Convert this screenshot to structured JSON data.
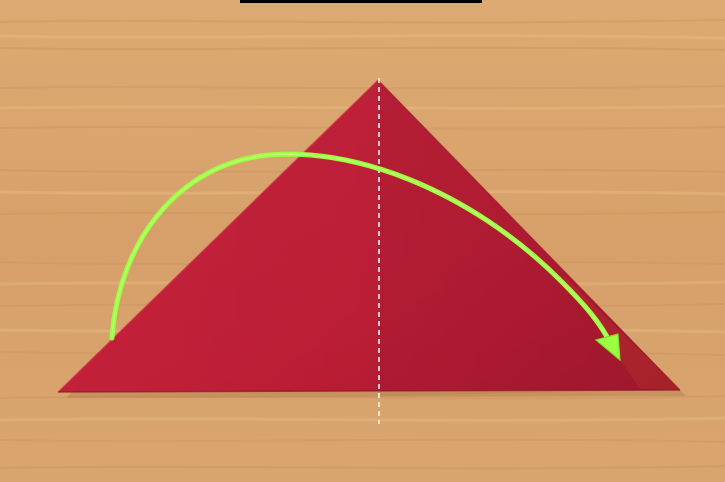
{
  "scene": {
    "subject": "origami-fold-step",
    "colors": {
      "table_base": "#d9a46e",
      "table_light": "#e6b884",
      "table_dark": "#c48d58",
      "paper_main": "#c4213a",
      "paper_shade": "#a8172f",
      "paper_edge": "#8f1226",
      "guide_line": "#f2f2f2",
      "fold_arrow": "#9cff3f",
      "top_bar": "#000000"
    },
    "icons": {
      "fold_arrow": "curved-fold-arrow-icon",
      "guide_line": "dashed-centerline"
    }
  }
}
